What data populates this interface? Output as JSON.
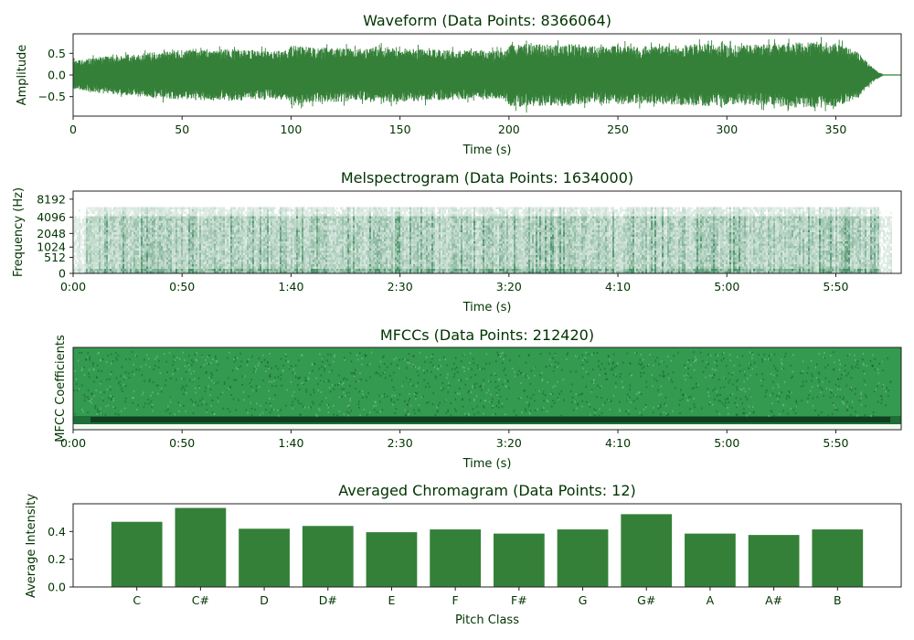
{
  "chart_data": [
    {
      "type": "line",
      "title": "Waveform (Data Points: 8366064)",
      "xlabel": "Time (s)",
      "ylabel": "Amplitude",
      "xlim": [
        0,
        380
      ],
      "ylim": [
        -0.95,
        0.95
      ],
      "xticks": [
        0,
        50,
        100,
        150,
        200,
        250,
        300,
        350
      ],
      "yticks": [
        0.5,
        0.0,
        -0.5
      ],
      "ytick_labels": [
        "0.5",
        "0.0",
        "−0.5"
      ],
      "end_time": 372,
      "envelope_time": [
        0,
        10,
        20,
        30,
        40,
        50,
        60,
        70,
        80,
        90,
        99,
        100,
        110,
        120,
        130,
        140,
        150,
        160,
        170,
        180,
        190,
        199,
        200,
        210,
        220,
        230,
        240,
        250,
        260,
        270,
        280,
        290,
        300,
        310,
        320,
        330,
        340,
        350,
        355,
        360,
        362,
        365,
        368,
        372
      ],
      "envelope_amp": [
        0.33,
        0.4,
        0.46,
        0.5,
        0.54,
        0.58,
        0.58,
        0.6,
        0.58,
        0.56,
        0.58,
        0.68,
        0.64,
        0.63,
        0.6,
        0.64,
        0.62,
        0.6,
        0.58,
        0.56,
        0.55,
        0.57,
        0.72,
        0.74,
        0.7,
        0.72,
        0.66,
        0.68,
        0.66,
        0.68,
        0.7,
        0.72,
        0.68,
        0.7,
        0.72,
        0.75,
        0.77,
        0.74,
        0.64,
        0.55,
        0.42,
        0.28,
        0.12,
        0.01
      ],
      "color": "#348038"
    },
    {
      "type": "heatmap",
      "title": "Melspectrogram (Data Points: 1634000)",
      "xlabel": "Time (s)",
      "ylabel": "Frequency (Hz)",
      "xlim_seconds": [
        0,
        380
      ],
      "xticks": [
        "0:00",
        "0:50",
        "1:40",
        "2:30",
        "3:20",
        "4:10",
        "5:00",
        "5:50"
      ],
      "xtick_seconds": [
        0,
        50,
        100,
        150,
        200,
        250,
        300,
        350
      ],
      "yticks": [
        "0",
        "512",
        "1024",
        "2048",
        "4096",
        "8192"
      ],
      "ytick_hz": [
        0,
        512,
        1024,
        2048,
        4096,
        8192
      ],
      "colormap": [
        "#ffffff",
        "#005a2b"
      ]
    },
    {
      "type": "heatmap",
      "title": "MFCCs (Data Points: 212420)",
      "xlabel": "Time (s)",
      "ylabel": "MFCC Coefficients",
      "xlim_seconds": [
        0,
        380
      ],
      "xticks": [
        "0:00",
        "0:50",
        "1:40",
        "2:30",
        "3:20",
        "4:10",
        "5:00",
        "5:50"
      ],
      "xtick_seconds": [
        0,
        50,
        100,
        150,
        200,
        250,
        300,
        350
      ],
      "colormap": [
        "#f2faf2",
        "#339a4f",
        "#0e3b1f"
      ]
    },
    {
      "type": "bar",
      "title": "Averaged Chromagram (Data Points: 12)",
      "xlabel": "Pitch Class",
      "ylabel": "Average Intensity",
      "categories": [
        "C",
        "C#",
        "D",
        "D#",
        "E",
        "F",
        "F#",
        "G",
        "G#",
        "A",
        "A#",
        "B"
      ],
      "values": [
        0.47,
        0.57,
        0.42,
        0.44,
        0.395,
        0.415,
        0.385,
        0.415,
        0.525,
        0.385,
        0.375,
        0.415
      ],
      "ylim": [
        0,
        0.6
      ],
      "yticks": [
        0.0,
        0.2,
        0.4
      ],
      "ytick_labels": [
        "0.0",
        "0.2",
        "0.4"
      ],
      "color": "#348038"
    }
  ]
}
